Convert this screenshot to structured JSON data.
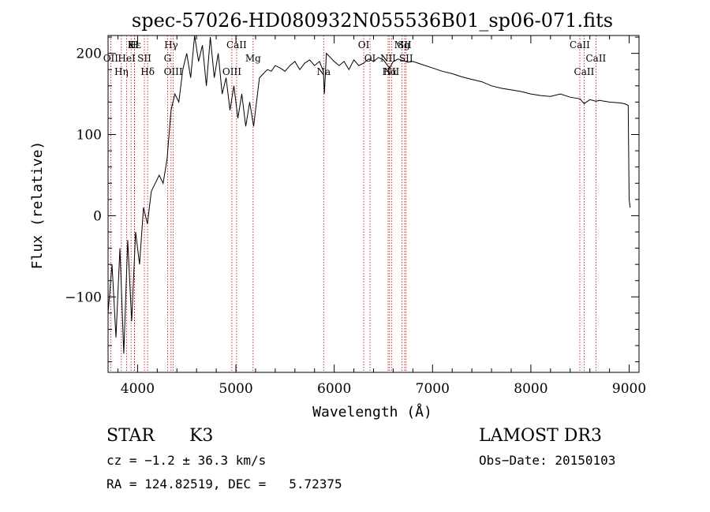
{
  "chart_data": {
    "type": "line",
    "title": "spec-57026-HD080932N055536B01_sp06-071.fits",
    "xlabel": "Wavelength (Å)",
    "ylabel": "Flux (relative)",
    "xlim": [
      3700,
      9100
    ],
    "ylim": [
      -193,
      222
    ],
    "xticks": [
      4000,
      5000,
      6000,
      7000,
      8000,
      9000
    ],
    "yticks": [
      -100,
      0,
      100,
      200
    ],
    "xtick_labels": [
      "4000",
      "5000",
      "6000",
      "7000",
      "8000",
      "9000"
    ],
    "ytick_labels": [
      "−100",
      "0",
      "100",
      "200"
    ],
    "series": [
      {
        "name": "flux",
        "x": [
          3700,
          3740,
          3780,
          3820,
          3860,
          3900,
          3940,
          3980,
          4020,
          4060,
          4100,
          4140,
          4180,
          4220,
          4260,
          4300,
          4340,
          4380,
          4420,
          4460,
          4500,
          4540,
          4580,
          4620,
          4660,
          4700,
          4740,
          4780,
          4820,
          4860,
          4900,
          4940,
          4980,
          5020,
          5060,
          5100,
          5140,
          5180,
          5200,
          5240,
          5280,
          5320,
          5360,
          5400,
          5450,
          5500,
          5550,
          5600,
          5650,
          5700,
          5750,
          5800,
          5850,
          5890,
          5900,
          5920,
          5960,
          6000,
          6050,
          6100,
          6150,
          6200,
          6250,
          6300,
          6350,
          6400,
          6450,
          6500,
          6563,
          6600,
          6650,
          6700,
          6750,
          6800,
          6900,
          7000,
          7100,
          7200,
          7300,
          7400,
          7500,
          7600,
          7700,
          7800,
          7900,
          8000,
          8100,
          8200,
          8300,
          8400,
          8500,
          8542,
          8600,
          8662,
          8700,
          8800,
          8900,
          8950,
          8990,
          9000,
          9010
        ],
        "values": [
          -120,
          -60,
          -150,
          -40,
          -170,
          -30,
          -130,
          -20,
          -60,
          10,
          -10,
          30,
          40,
          50,
          40,
          70,
          130,
          150,
          140,
          180,
          200,
          170,
          230,
          190,
          210,
          160,
          220,
          170,
          200,
          150,
          170,
          130,
          160,
          120,
          150,
          110,
          140,
          110,
          130,
          170,
          175,
          180,
          178,
          185,
          182,
          178,
          185,
          190,
          180,
          188,
          192,
          185,
          190,
          178,
          150,
          200,
          195,
          190,
          185,
          190,
          180,
          192,
          185,
          188,
          193,
          190,
          195,
          192,
          182,
          190,
          193,
          191,
          189,
          190,
          186,
          182,
          178,
          175,
          171,
          168,
          165,
          160,
          157,
          155,
          153,
          150,
          148,
          147,
          150,
          146,
          144,
          138,
          143,
          141,
          142,
          140,
          139,
          138,
          136,
          20,
          10
        ]
      }
    ],
    "lines": [
      {
        "name": "Hε",
        "wavelength": 3970
      },
      {
        "name": "OII",
        "wavelength": 3727
      },
      {
        "name": "OIII",
        "wavelength": 4363
      },
      {
        "name": "K",
        "wavelength": 3934
      },
      {
        "name": "HeI",
        "wavelength": 3889
      },
      {
        "name": "Hη",
        "wavelength": 3835
      },
      {
        "name": "H",
        "wavelength": 3968
      },
      {
        "name": "SII",
        "wavelength": 4069
      },
      {
        "name": "Hδ",
        "wavelength": 4102
      },
      {
        "name": "Hγ",
        "wavelength": 4341
      },
      {
        "name": "G",
        "wavelength": 4305
      },
      {
        "name": "OIII",
        "wavelength": 4959
      },
      {
        "name": "CaII",
        "wavelength": 5007
      },
      {
        "name": "Mg",
        "wavelength": 5175
      },
      {
        "name": "Na",
        "wavelength": 5893
      },
      {
        "name": "OI",
        "wavelength": 6300
      },
      {
        "name": "OI",
        "wavelength": 6364
      },
      {
        "name": "Hα",
        "wavelength": 6563
      },
      {
        "name": "SII",
        "wavelength": 6716
      },
      {
        "name": "NII",
        "wavelength": 6548
      },
      {
        "name": "NII",
        "wavelength": 6583
      },
      {
        "name": "Mg",
        "wavelength": 6690
      },
      {
        "name": "SII",
        "wavelength": 6731
      },
      {
        "name": "CaII",
        "wavelength": 8542
      },
      {
        "name": "CaII",
        "wavelength": 8498
      },
      {
        "name": "CaII",
        "wavelength": 8662
      }
    ]
  },
  "info": {
    "object_class": "STAR",
    "subclass": "K3",
    "survey": "LAMOST DR3",
    "redshift": "cz = −1.2 ± 36.3 km/s",
    "obs_date": "Obs−Date: 20150103",
    "coords": "RA = 124.82519, DEC =   5.72375"
  },
  "colors": {
    "spectrum": "#000000",
    "lines": "#c00000"
  }
}
